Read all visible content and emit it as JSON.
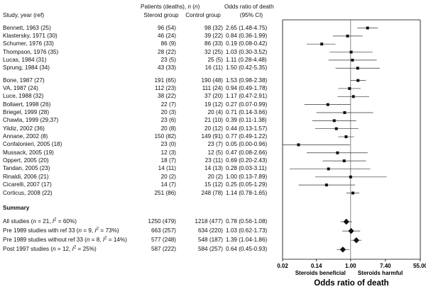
{
  "header": {
    "study_col": "Study, year (ref)",
    "patients_header_pre": "Patients (deaths), ",
    "patients_header_n": "n",
    "patients_header_mid": " (",
    "patients_header_n2": "n",
    "patients_header_post": ")",
    "steroid_group": "Steroid group",
    "control_group": "Control group",
    "or_header_line1": "Odds ratio of death",
    "or_header_line2": "(95% CI)"
  },
  "summary_heading": "Summary",
  "chart_data": {
    "type": "forest",
    "title": "",
    "xlabel": "Odds ratio of death",
    "xscale": "log",
    "xlim": [
      0.02,
      55.0
    ],
    "ticks": [
      0.02,
      0.14,
      1.0,
      7.4,
      55.0
    ],
    "tick_labels": [
      "0.02",
      "0.14",
      "1.00",
      "7.40",
      "55.00"
    ],
    "left_annotation": "Steroids beneficial",
    "right_annotation": "Steroids harmful",
    "studies": [
      {
        "label": "Bennett, 1963 (25)",
        "steroid": "96 (54)",
        "control": "98 (32)",
        "ci_text": "2.65 (1.48-4.75)",
        "or": 2.65,
        "lo": 1.48,
        "hi": 4.75
      },
      {
        "label": "Klastersky, 1971 (30)",
        "steroid": "46 (24)",
        "control": "39 (22)",
        "ci_text": "0.84 (0.36-1.99)",
        "or": 0.84,
        "lo": 0.36,
        "hi": 1.99
      },
      {
        "label": "Schumer, 1976 (33)",
        "steroid": "86 (9)",
        "control": "86 (33)",
        "ci_text": "0.19 (0.08-0.42)",
        "or": 0.19,
        "lo": 0.08,
        "hi": 0.42
      },
      {
        "label": "Thompson, 1976 (35)",
        "steroid": "28 (22)",
        "control": "32 (25)",
        "ci_text": "1.03 (0.30-3.52)",
        "or": 1.03,
        "lo": 0.3,
        "hi": 3.52
      },
      {
        "label": "Lucas, 1984 (31)",
        "steroid": "23 (5)",
        "control": "25 (5)",
        "ci_text": "1.11 (0.28-4.48)",
        "or": 1.11,
        "lo": 0.28,
        "hi": 4.48
      },
      {
        "label": "Sprung, 1984 (34)",
        "steroid": "43 (33)",
        "control": "16 (11)",
        "ci_text": "1.50 (0.42-5.35)",
        "or": 1.5,
        "lo": 0.42,
        "hi": 5.35
      },
      {
        "label": "Bone, 1987 (27)",
        "steroid": "191 (65)",
        "control": "190 (48)",
        "ci_text": "1.53 (0.98-2.38)",
        "or": 1.53,
        "lo": 0.98,
        "hi": 2.38
      },
      {
        "label": "VA, 1987 (24)",
        "steroid": "112 (23)",
        "control": "111 (24)",
        "ci_text": "0.94 (0.49-1.78)",
        "or": 0.94,
        "lo": 0.49,
        "hi": 1.78
      },
      {
        "label": "Luce, 1988 (32)",
        "steroid": "38 (22)",
        "control": "37 (20)",
        "ci_text": "1.17 (0.47-2.91)",
        "or": 1.17,
        "lo": 0.47,
        "hi": 2.91
      },
      {
        "label": "Bollaert, 1998 (26)",
        "steroid": "22 (7)",
        "control": "19 (12)",
        "ci_text": "0.27 (0.07-0.99)",
        "or": 0.27,
        "lo": 0.07,
        "hi": 0.99
      },
      {
        "label": "Briegel, 1999 (28)",
        "steroid": "20 (3)",
        "control": "20 (4)",
        "ci_text": "0.71 (0.14-3.66)",
        "or": 0.71,
        "lo": 0.14,
        "hi": 3.66
      },
      {
        "label": "Chawla, 1999 (29,37)",
        "steroid": "23 (6)",
        "control": "21 (10)",
        "ci_text": "0.39 (0.11-1.38)",
        "or": 0.39,
        "lo": 0.11,
        "hi": 1.38
      },
      {
        "label": "Yildiz, 2002 (36)",
        "steroid": "20 (8)",
        "control": "20 (12)",
        "ci_text": "0.44 (0.13-1.57)",
        "or": 0.44,
        "lo": 0.13,
        "hi": 1.57
      },
      {
        "label": "Annane, 2002 (8)",
        "steroid": "150 (82)",
        "control": "149 (91)",
        "ci_text": "0.77 (0.49-1.22)",
        "or": 0.77,
        "lo": 0.49,
        "hi": 1.22
      },
      {
        "label": "Confalonieri, 2005 (18)",
        "steroid": "23 (0)",
        "control": "23 (7)",
        "ci_text": "0.05 (0.00-0.96)",
        "or": 0.05,
        "lo": 0.005,
        "hi": 0.96
      },
      {
        "label": "Mussack, 2005 (19)",
        "steroid": "12 (3)",
        "control": "12 (5)",
        "ci_text": "0.47 (0.08-2.66)",
        "or": 0.47,
        "lo": 0.08,
        "hi": 2.66
      },
      {
        "label": "Oppert, 2005 (20)",
        "steroid": "18 (7)",
        "control": "23 (11)",
        "ci_text": "0.69 (0.20-2.43)",
        "or": 0.69,
        "lo": 0.2,
        "hi": 2.43
      },
      {
        "label": "Tandan, 2005 (23)",
        "steroid": "14 (11)",
        "control": "14 (13)",
        "ci_text": "0.28 (0.03-3.11)",
        "or": 0.28,
        "lo": 0.03,
        "hi": 3.11
      },
      {
        "label": "Rinaldi, 2006 (21)",
        "steroid": "20 (2)",
        "control": "20 (2)",
        "ci_text": "1.00 (0.13-7.89)",
        "or": 1.0,
        "lo": 0.13,
        "hi": 7.89
      },
      {
        "label": "Cicarelli, 2007 (17)",
        "steroid": "14 (7)",
        "control": "15 (12)",
        "ci_text": "0.25 (0.05-1.29)",
        "or": 0.25,
        "lo": 0.05,
        "hi": 1.29
      },
      {
        "label": "Corticus, 2008 (22)",
        "steroid": "251 (86)",
        "control": "248 (78)",
        "ci_text": "1.14 (0.78-1.65)",
        "or": 1.14,
        "lo": 0.78,
        "hi": 1.65
      }
    ],
    "summary": [
      {
        "label_pre": "All studies (",
        "n_sym": "n",
        "mid": " = 21, ",
        "i_sym": "I",
        "sup": "2",
        "post": " = 60%)",
        "steroid": "1250 (479)",
        "control": "1218 (477)",
        "ci_text": "0.78 (0.56-1.08)",
        "or": 0.78,
        "lo": 0.56,
        "hi": 1.08
      },
      {
        "label_pre": "Pre 1989 studies with ref 33 (",
        "n_sym": "n",
        "mid": " = 9, ",
        "i_sym": "I",
        "sup": "2",
        "post": " = 73%)",
        "steroid": "663 (257)",
        "control": "634 (220)",
        "ci_text": "1.03 (0.62-1.73)",
        "or": 1.03,
        "lo": 0.62,
        "hi": 1.73
      },
      {
        "label_pre": "Pre 1989 studies without ref 33 (",
        "n_sym": "n",
        "mid": " = 8, ",
        "i_sym": "I",
        "sup": "2",
        "post": " = 14%)",
        "steroid": "577 (248)",
        "control": "548 (187)",
        "ci_text": "1.39 (1.04-1.86)",
        "or": 1.39,
        "lo": 1.04,
        "hi": 1.86
      },
      {
        "label_pre": "Post 1997 studies (",
        "n_sym": "n",
        "mid": " = 12, ",
        "i_sym": "I",
        "sup": "2",
        "post": " = 25%)",
        "steroid": "587 (222)",
        "control": "584 (257)",
        "ci_text": "0.64 (0.45-0.93)",
        "or": 0.64,
        "lo": 0.45,
        "hi": 0.93
      }
    ]
  }
}
